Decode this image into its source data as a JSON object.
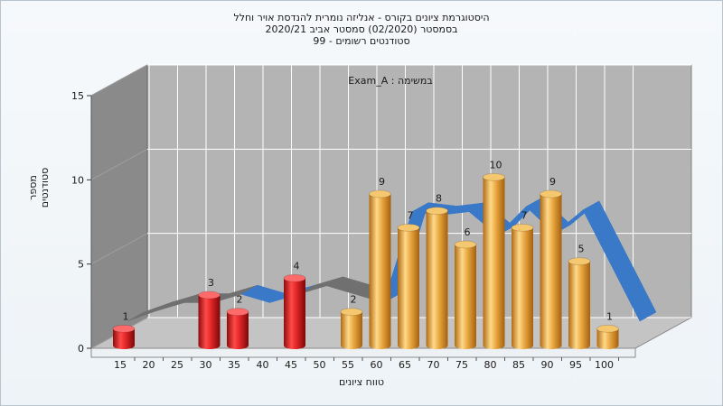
{
  "chart_data": {
    "type": "bar",
    "title_lines": [
      "היסטוגרמת ציונים בקורס - אנליזה נומרית להנדסת אויר וחלל",
      "בסמסטר  (02/2020)  סמסטר אביב 2020/21",
      "סטודנטים רשומים - 99"
    ],
    "legend": "Exam_A : במשימה",
    "xlabel": "טווח ציונים",
    "ylabel": "מספר סטודנטים",
    "x_ticks": [
      15,
      20,
      25,
      30,
      35,
      40,
      45,
      50,
      55,
      60,
      65,
      70,
      75,
      80,
      85,
      90,
      95,
      100
    ],
    "y_ticks": [
      0,
      5,
      10,
      15
    ],
    "ylim": [
      0,
      15
    ],
    "bars": [
      {
        "x": 15,
        "value": 1,
        "color": "red"
      },
      {
        "x": 30,
        "value": 3,
        "color": "red"
      },
      {
        "x": 35,
        "value": 2,
        "color": "red"
      },
      {
        "x": 45,
        "value": 4,
        "color": "red"
      },
      {
        "x": 55,
        "value": 2,
        "color": "orange"
      },
      {
        "x": 60,
        "value": 9,
        "color": "orange"
      },
      {
        "x": 65,
        "value": 7,
        "color": "orange"
      },
      {
        "x": 70,
        "value": 8,
        "color": "orange"
      },
      {
        "x": 75,
        "value": 6,
        "color": "orange"
      },
      {
        "x": 80,
        "value": 10,
        "color": "orange"
      },
      {
        "x": 85,
        "value": 7,
        "color": "orange"
      },
      {
        "x": 90,
        "value": 9,
        "color": "orange"
      },
      {
        "x": 95,
        "value": 5,
        "color": "orange"
      },
      {
        "x": 100,
        "value": 1,
        "color": "orange"
      }
    ],
    "curve": {
      "x": [
        15,
        20,
        25,
        30,
        35,
        40,
        45,
        50,
        55,
        60,
        65,
        70,
        75,
        80,
        85,
        90,
        95,
        100,
        105
      ],
      "y": [
        0,
        0.6,
        1.1,
        1.1,
        1.6,
        1.1,
        1.6,
        2.1,
        1.6,
        1.1,
        6.5,
        6.3,
        6.5,
        5.1,
        6.8,
        5.2,
        6.6,
        3.3,
        0
      ]
    },
    "colors": {
      "red": "#d62020",
      "orange": "#e6a53c",
      "curve_front": "#3a78c8",
      "curve_back": "#707070",
      "back_wall": "#b4b4b4",
      "left_wall": "#8a8a8a",
      "floor": "#c4c4c4"
    },
    "grid": true
  }
}
